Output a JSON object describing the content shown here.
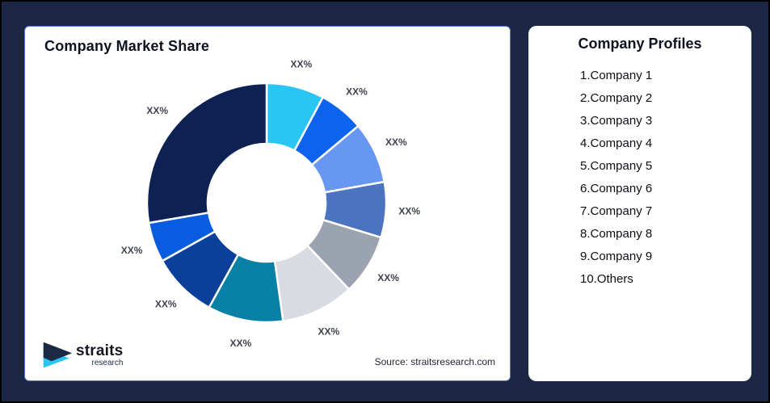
{
  "page": {
    "background_color": "#1C2745"
  },
  "market_share_card": {
    "title": "Company Market Share",
    "source": "Source: straitsresearch.com",
    "logo": {
      "brand": "straits",
      "subtitle": "research",
      "navy_color": "#1B2945",
      "cyan_color": "#29C6F4"
    }
  },
  "company_profiles_card": {
    "title": "Company Profiles",
    "items": [
      "1.Company 1",
      "2.Company 2",
      "3.Company 3",
      "4.Company 4",
      "5.Company 5",
      "6.Company 6",
      "7.Company 7",
      "8.Company 8",
      "9.Company 9",
      "10.Others"
    ]
  },
  "chart_data": {
    "type": "pie",
    "variant": "donut",
    "title": "Company Market Share",
    "categories": [
      "Company 1",
      "Company 2",
      "Company 3",
      "Company 4",
      "Company 5",
      "Company 6",
      "Company 7",
      "Company 8",
      "Company 9",
      "Others"
    ],
    "values": [
      7.8,
      6.1,
      8.3,
      7.5,
      8.2,
      9.9,
      10.2,
      8.9,
      5.4,
      27.7
    ],
    "value_labels": [
      "XX%",
      "XX%",
      "XX%",
      "XX%",
      "XX%",
      "XX%",
      "XX%",
      "XX%",
      "XX%",
      "XX%"
    ],
    "colors": [
      "#29C6F4",
      "#0B63EE",
      "#6897F2",
      "#4A73C0",
      "#9CA3B0",
      "#D8DBE1",
      "#0981A6",
      "#0B409A",
      "#085CDF",
      "#0D2152"
    ],
    "start_angle_deg": 0,
    "direction": "clockwise",
    "legend": "none",
    "label_color": "#3F434E",
    "slice_gap_color": "#FFFFFF"
  }
}
